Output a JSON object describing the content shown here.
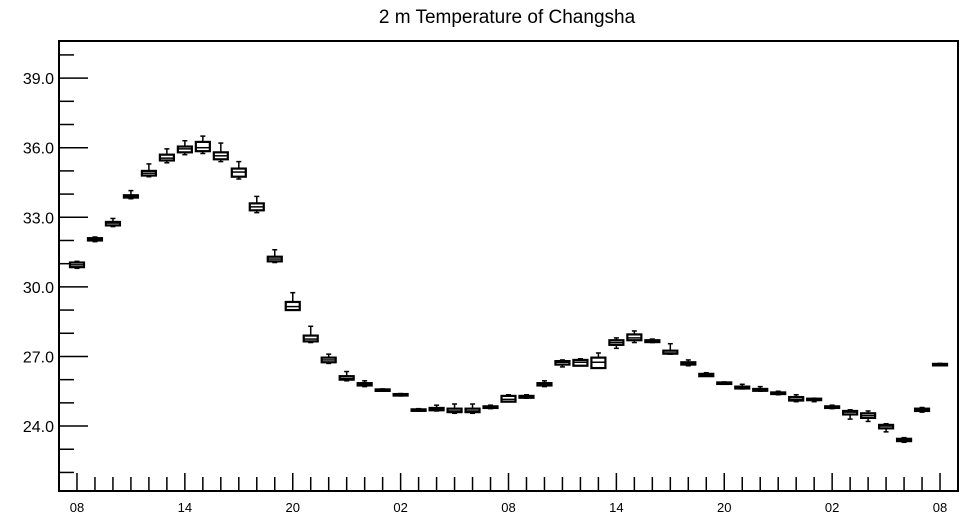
{
  "chart_data": {
    "type": "box",
    "title": "2 m Temperature of Changsha",
    "xlabel": "",
    "ylabel": "",
    "ylim": [
      21.2,
      40.6
    ],
    "yticks": [
      "24.0",
      "27.0",
      "30.0",
      "33.0",
      "36.0",
      "39.0"
    ],
    "x_tick_labels": [
      "08",
      "14",
      "20",
      "02",
      "08",
      "14",
      "20",
      "02",
      "08"
    ],
    "x_tick_hours": [
      0,
      6,
      12,
      18,
      24,
      30,
      36,
      42,
      48
    ],
    "x_range_hours": [
      -1,
      49
    ],
    "grid": false,
    "boxes": [
      {
        "hour": 0,
        "min": 30.8,
        "q1": 30.85,
        "median": 30.95,
        "q3": 31.05,
        "max": 31.1
      },
      {
        "hour": 1,
        "min": 31.95,
        "q1": 32.0,
        "median": 32.05,
        "q3": 32.1,
        "max": 32.15
      },
      {
        "hour": 2,
        "min": 32.6,
        "q1": 32.65,
        "median": 32.75,
        "q3": 32.8,
        "max": 32.95
      },
      {
        "hour": 3,
        "min": 33.8,
        "q1": 33.85,
        "median": 33.9,
        "q3": 33.95,
        "max": 34.15
      },
      {
        "hour": 4,
        "min": 34.75,
        "q1": 34.8,
        "median": 34.9,
        "q3": 35.0,
        "max": 35.3
      },
      {
        "hour": 5,
        "min": 35.35,
        "q1": 35.45,
        "median": 35.55,
        "q3": 35.7,
        "max": 35.95
      },
      {
        "hour": 6,
        "min": 35.7,
        "q1": 35.8,
        "median": 35.95,
        "q3": 36.05,
        "max": 36.3
      },
      {
        "hour": 7,
        "min": 35.75,
        "q1": 35.85,
        "median": 36.0,
        "q3": 36.25,
        "max": 36.5
      },
      {
        "hour": 8,
        "min": 35.4,
        "q1": 35.5,
        "median": 35.65,
        "q3": 35.8,
        "max": 36.2
      },
      {
        "hour": 9,
        "min": 34.65,
        "q1": 34.75,
        "median": 34.95,
        "q3": 35.1,
        "max": 35.4
      },
      {
        "hour": 10,
        "min": 33.2,
        "q1": 33.3,
        "median": 33.45,
        "q3": 33.6,
        "max": 33.9
      },
      {
        "hour": 11,
        "min": 31.05,
        "q1": 31.1,
        "median": 31.2,
        "q3": 31.3,
        "max": 31.6
      },
      {
        "hour": 12,
        "min": 29.0,
        "q1": 29.0,
        "median": 29.15,
        "q3": 29.35,
        "max": 29.75
      },
      {
        "hour": 13,
        "min": 27.6,
        "q1": 27.65,
        "median": 27.75,
        "q3": 27.9,
        "max": 28.3
      },
      {
        "hour": 14,
        "min": 26.7,
        "q1": 26.75,
        "median": 26.85,
        "q3": 26.95,
        "max": 27.1
      },
      {
        "hour": 15,
        "min": 25.95,
        "q1": 26.0,
        "median": 26.05,
        "q3": 26.15,
        "max": 26.35
      },
      {
        "hour": 16,
        "min": 25.7,
        "q1": 25.75,
        "median": 25.8,
        "q3": 25.85,
        "max": 25.95
      },
      {
        "hour": 17,
        "min": 25.5,
        "q1": 25.52,
        "median": 25.55,
        "q3": 25.58,
        "max": 25.6
      },
      {
        "hour": 18,
        "min": 25.3,
        "q1": 25.32,
        "median": 25.35,
        "q3": 25.38,
        "max": 25.4
      },
      {
        "hour": 19,
        "min": 24.65,
        "q1": 24.68,
        "median": 24.7,
        "q3": 24.72,
        "max": 24.75
      },
      {
        "hour": 20,
        "min": 24.65,
        "q1": 24.68,
        "median": 24.72,
        "q3": 24.78,
        "max": 24.9
      },
      {
        "hour": 21,
        "min": 24.55,
        "q1": 24.6,
        "median": 24.65,
        "q3": 24.75,
        "max": 24.95
      },
      {
        "hour": 22,
        "min": 24.55,
        "q1": 24.6,
        "median": 24.65,
        "q3": 24.75,
        "max": 24.95
      },
      {
        "hour": 23,
        "min": 24.75,
        "q1": 24.78,
        "median": 24.8,
        "q3": 24.85,
        "max": 24.9
      },
      {
        "hour": 24,
        "min": 25.05,
        "q1": 25.05,
        "median": 25.15,
        "q3": 25.3,
        "max": 25.35
      },
      {
        "hour": 25,
        "min": 25.2,
        "q1": 25.22,
        "median": 25.25,
        "q3": 25.3,
        "max": 25.35
      },
      {
        "hour": 26,
        "min": 25.7,
        "q1": 25.75,
        "median": 25.8,
        "q3": 25.85,
        "max": 25.95
      },
      {
        "hour": 27,
        "min": 26.55,
        "q1": 26.65,
        "median": 26.75,
        "q3": 26.8,
        "max": 26.85
      },
      {
        "hour": 28,
        "min": 26.6,
        "q1": 26.6,
        "median": 26.75,
        "q3": 26.85,
        "max": 26.9
      },
      {
        "hour": 29,
        "min": 26.5,
        "q1": 26.5,
        "median": 26.75,
        "q3": 26.95,
        "max": 27.15
      },
      {
        "hour": 30,
        "min": 27.35,
        "q1": 27.5,
        "median": 27.6,
        "q3": 27.7,
        "max": 27.8
      },
      {
        "hour": 31,
        "min": 27.6,
        "q1": 27.7,
        "median": 27.8,
        "q3": 27.95,
        "max": 28.1
      },
      {
        "hour": 32,
        "min": 27.6,
        "q1": 27.62,
        "median": 27.65,
        "q3": 27.7,
        "max": 27.75
      },
      {
        "hour": 33,
        "min": 27.1,
        "q1": 27.12,
        "median": 27.15,
        "q3": 27.25,
        "max": 27.55
      },
      {
        "hour": 34,
        "min": 26.6,
        "q1": 26.65,
        "median": 26.7,
        "q3": 26.75,
        "max": 26.85
      },
      {
        "hour": 35,
        "min": 26.15,
        "q1": 26.15,
        "median": 26.2,
        "q3": 26.25,
        "max": 26.3
      },
      {
        "hour": 36,
        "min": 25.8,
        "q1": 25.82,
        "median": 25.85,
        "q3": 25.88,
        "max": 25.9
      },
      {
        "hour": 37,
        "min": 25.6,
        "q1": 25.62,
        "median": 25.65,
        "q3": 25.7,
        "max": 25.8
      },
      {
        "hour": 38,
        "min": 25.5,
        "q1": 25.52,
        "median": 25.55,
        "q3": 25.6,
        "max": 25.7
      },
      {
        "hour": 39,
        "min": 25.35,
        "q1": 25.38,
        "median": 25.4,
        "q3": 25.45,
        "max": 25.5
      },
      {
        "hour": 40,
        "min": 25.05,
        "q1": 25.1,
        "median": 25.15,
        "q3": 25.25,
        "max": 25.35
      },
      {
        "hour": 41,
        "min": 25.05,
        "q1": 25.12,
        "median": 25.15,
        "q3": 25.18,
        "max": 25.2
      },
      {
        "hour": 42,
        "min": 24.75,
        "q1": 24.78,
        "median": 24.82,
        "q3": 24.85,
        "max": 24.9
      },
      {
        "hour": 43,
        "min": 24.3,
        "q1": 24.5,
        "median": 24.6,
        "q3": 24.65,
        "max": 24.7
      },
      {
        "hour": 44,
        "min": 24.2,
        "q1": 24.35,
        "median": 24.45,
        "q3": 24.55,
        "max": 24.65
      },
      {
        "hour": 45,
        "min": 23.75,
        "q1": 23.9,
        "median": 24.0,
        "q3": 24.05,
        "max": 24.1
      },
      {
        "hour": 46,
        "min": 23.3,
        "q1": 23.35,
        "median": 23.4,
        "q3": 23.45,
        "max": 23.5
      },
      {
        "hour": 47,
        "min": 24.6,
        "q1": 24.65,
        "median": 24.7,
        "q3": 24.75,
        "max": 24.8
      },
      {
        "hour": 48,
        "min": 26.6,
        "q1": 26.62,
        "median": 26.65,
        "q3": 26.68,
        "max": 26.7
      }
    ]
  }
}
